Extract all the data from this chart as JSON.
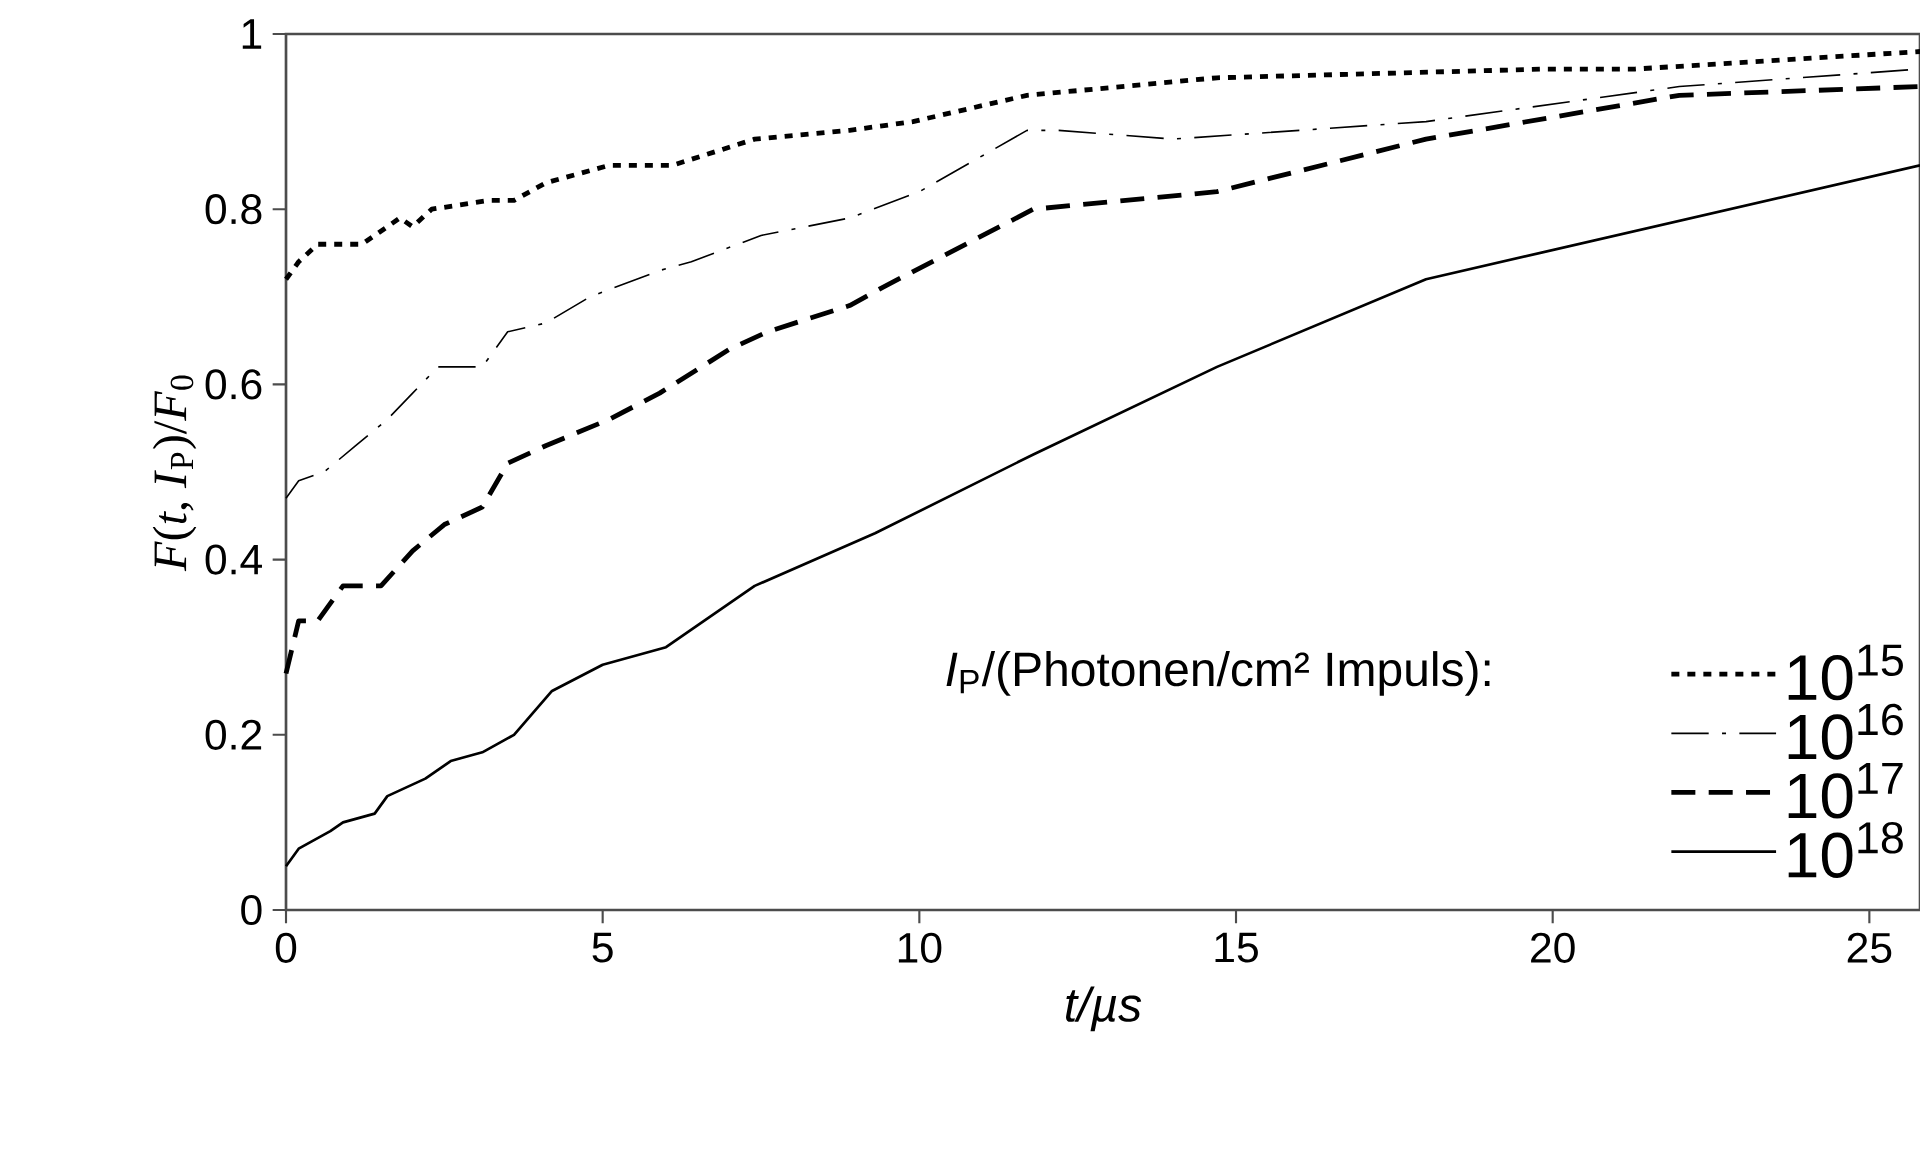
{
  "chart_data": {
    "type": "line",
    "xlabel": "t/µs",
    "ylabel": "*F*(*t*, *I*$_{P}$)/*F*$_{0}$",
    "legend_title": "*I*$_{P}$/(Photonen/cm² Impuls):",
    "xlim": [
      0,
      25.8
    ],
    "ylim": [
      0,
      1
    ],
    "xticks": [
      0,
      5,
      10,
      15,
      20,
      25
    ],
    "yticks": [
      0,
      0.2,
      0.4,
      0.6,
      0.8,
      1
    ],
    "grid": false,
    "legend": "bottom right",
    "series": [
      {
        "name": "10$^{15}$",
        "color": "#000000",
        "line_style": "dotted",
        "x": [
          0,
          0.2,
          0.5,
          1.2,
          1.6,
          1.8,
          2.0,
          2.3,
          3.2,
          3.6,
          4.1,
          5.1,
          6.1,
          7.4,
          8.9,
          9.9,
          11.7,
          14.7,
          19.9,
          21.3,
          25.8
        ],
        "values": [
          0.72,
          0.74,
          0.76,
          0.76,
          0.78,
          0.79,
          0.78,
          0.8,
          0.81,
          0.81,
          0.83,
          0.85,
          0.85,
          0.88,
          0.89,
          0.9,
          0.93,
          0.95,
          0.96,
          0.96,
          0.98
        ]
      },
      {
        "name": "10$^{16}$",
        "color": "#000000",
        "line_style": "dashdotted",
        "x": [
          0,
          0.2,
          0.6,
          1.1,
          1.6,
          2.0,
          2.4,
          3.1,
          3.5,
          4.1,
          4.8,
          5.9,
          6.4,
          7.5,
          8.9,
          10.0,
          11.7,
          12.2,
          14.0,
          18.0,
          22.0,
          25.8
        ],
        "values": [
          0.47,
          0.49,
          0.5,
          0.53,
          0.56,
          0.59,
          0.62,
          0.62,
          0.66,
          0.67,
          0.7,
          0.73,
          0.74,
          0.77,
          0.79,
          0.82,
          0.89,
          0.89,
          0.88,
          0.9,
          0.94,
          0.96
        ]
      },
      {
        "name": "10$^{17}$",
        "color": "#000000",
        "line_style": "dashed",
        "x": [
          0,
          0.2,
          0.5,
          0.9,
          1.5,
          2.0,
          2.5,
          3.1,
          3.5,
          4.1,
          5.1,
          5.9,
          7.0,
          7.6,
          8.9,
          9.4,
          11.8,
          14.7,
          18.0,
          22.0,
          25.8
        ],
        "values": [
          0.27,
          0.33,
          0.33,
          0.37,
          0.37,
          0.41,
          0.44,
          0.46,
          0.51,
          0.53,
          0.56,
          0.59,
          0.64,
          0.66,
          0.69,
          0.71,
          0.8,
          0.82,
          0.88,
          0.93,
          0.94
        ]
      },
      {
        "name": "10$^{18}$",
        "color": "#000000",
        "line_style": "solid",
        "x": [
          0,
          0.2,
          0.7,
          0.9,
          1.4,
          1.6,
          2.2,
          2.6,
          3.1,
          3.6,
          4.2,
          5.0,
          6.0,
          7.4,
          9.3,
          11.8,
          14.7,
          18.0,
          25.8
        ],
        "values": [
          0.05,
          0.07,
          0.09,
          0.1,
          0.11,
          0.13,
          0.15,
          0.17,
          0.18,
          0.2,
          0.25,
          0.28,
          0.3,
          0.37,
          0.43,
          0.52,
          0.62,
          0.72,
          0.85
        ]
      }
    ]
  }
}
